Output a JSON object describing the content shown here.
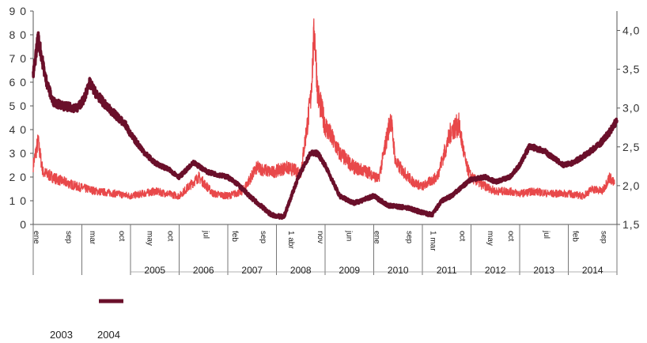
{
  "chart_data": {
    "type": "line",
    "title": "",
    "left_axis": {
      "ylim": [
        0,
        90
      ],
      "ticks": [
        "0",
        "1 0",
        "2 0",
        "3 0",
        "4 0",
        "5 0",
        "6 0",
        "7 0",
        "8 0",
        "9 0"
      ]
    },
    "right_axis": {
      "ylim": [
        1.5,
        4.25
      ],
      "ticks": [
        "1,5",
        "2,0",
        "2,5",
        "3,0",
        "3,5",
        "4,0"
      ]
    },
    "x_sub_labels": [
      {
        "text": "ene",
        "t": 2003.02
      },
      {
        "text": "sep",
        "t": 2003.68
      },
      {
        "text": "mar",
        "t": 2004.17
      },
      {
        "text": "oct",
        "t": 2004.77
      },
      {
        "text": "may",
        "t": 2005.35
      },
      {
        "text": "oct",
        "t": 2005.77
      },
      {
        "text": "jul",
        "t": 2006.5
      },
      {
        "text": "feb",
        "t": 2007.1
      },
      {
        "text": "sep",
        "t": 2007.68
      },
      {
        "text": "1 abr",
        "t": 2008.25
      },
      {
        "text": "nov",
        "t": 2008.85
      },
      {
        "text": "jun",
        "t": 2009.45
      },
      {
        "text": "ene",
        "t": 2010.02
      },
      {
        "text": "sep",
        "t": 2010.68
      },
      {
        "text": "1 mar",
        "t": 2011.17
      },
      {
        "text": "oct",
        "t": 2011.77
      },
      {
        "text": "may",
        "t": 2012.35
      },
      {
        "text": "oct",
        "t": 2012.77
      },
      {
        "text": "jul",
        "t": 2013.5
      },
      {
        "text": "feb",
        "t": 2014.1
      },
      {
        "text": "sep",
        "t": 2014.68
      }
    ],
    "year_labels": [
      {
        "text": "2005",
        "t": 2005.5
      },
      {
        "text": "2006",
        "t": 2006.5
      },
      {
        "text": "2007",
        "t": 2007.5
      },
      {
        "text": "2008",
        "t": 2008.5
      },
      {
        "text": "2009",
        "t": 2009.5
      },
      {
        "text": "2010",
        "t": 2010.5
      },
      {
        "text": "2011",
        "t": 2011.5
      },
      {
        "text": "2012",
        "t": 2012.5
      },
      {
        "text": "2013",
        "t": 2013.5
      },
      {
        "text": "2014",
        "t": 2014.5
      }
    ],
    "year_bounds": [
      2003.0,
      2004.0,
      2005.0,
      2006.0,
      2007.0,
      2008.0,
      2009.0,
      2010.0,
      2011.0,
      2012.0,
      2013.0,
      2014.0,
      2015.0
    ],
    "x_range": [
      2003.0,
      2015.0
    ],
    "series": [
      {
        "axis": "left",
        "color": "#e8484a",
        "points": [
          [
            2003.0,
            25
          ],
          [
            2003.1,
            35
          ],
          [
            2003.2,
            22
          ],
          [
            2003.5,
            19
          ],
          [
            2003.9,
            16
          ],
          [
            2004.3,
            14
          ],
          [
            2004.7,
            13
          ],
          [
            2005.0,
            12
          ],
          [
            2005.5,
            14
          ],
          [
            2006.0,
            12
          ],
          [
            2006.4,
            20
          ],
          [
            2006.7,
            13
          ],
          [
            2007.0,
            12
          ],
          [
            2007.3,
            14
          ],
          [
            2007.6,
            24
          ],
          [
            2007.9,
            22
          ],
          [
            2008.2,
            24
          ],
          [
            2008.5,
            22
          ],
          [
            2008.7,
            52
          ],
          [
            2008.78,
            82
          ],
          [
            2008.85,
            55
          ],
          [
            2009.0,
            42
          ],
          [
            2009.3,
            30
          ],
          [
            2009.6,
            24
          ],
          [
            2009.9,
            22
          ],
          [
            2010.1,
            19
          ],
          [
            2010.35,
            45
          ],
          [
            2010.45,
            26
          ],
          [
            2010.8,
            18
          ],
          [
            2011.0,
            16
          ],
          [
            2011.3,
            20
          ],
          [
            2011.6,
            40
          ],
          [
            2011.75,
            42
          ],
          [
            2011.9,
            25
          ],
          [
            2012.0,
            20
          ],
          [
            2012.2,
            17
          ],
          [
            2012.5,
            14
          ],
          [
            2012.8,
            14
          ],
          [
            2013.0,
            13
          ],
          [
            2013.3,
            14
          ],
          [
            2013.6,
            13
          ],
          [
            2014.0,
            13
          ],
          [
            2014.3,
            12
          ],
          [
            2014.5,
            15
          ],
          [
            2014.7,
            14
          ],
          [
            2014.85,
            20
          ],
          [
            2014.95,
            17
          ]
        ]
      },
      {
        "axis": "left",
        "color": "#6a0f2a",
        "points": [
          [
            2003.0,
            63
          ],
          [
            2003.1,
            79
          ],
          [
            2003.25,
            62
          ],
          [
            2003.4,
            52
          ],
          [
            2003.6,
            50
          ],
          [
            2003.9,
            49
          ],
          [
            2004.05,
            53
          ],
          [
            2004.15,
            60
          ],
          [
            2004.3,
            55
          ],
          [
            2004.5,
            50
          ],
          [
            2004.9,
            42
          ],
          [
            2005.0,
            38
          ],
          [
            2005.3,
            30
          ],
          [
            2005.5,
            26
          ],
          [
            2005.8,
            23
          ],
          [
            2006.0,
            20
          ],
          [
            2006.3,
            26
          ],
          [
            2006.6,
            22
          ],
          [
            2007.0,
            20
          ],
          [
            2007.2,
            17
          ],
          [
            2007.5,
            11
          ],
          [
            2007.9,
            4
          ],
          [
            2008.15,
            3
          ],
          [
            2008.45,
            20
          ],
          [
            2008.7,
            30
          ],
          [
            2008.85,
            30
          ],
          [
            2009.0,
            25
          ],
          [
            2009.3,
            12
          ],
          [
            2009.6,
            9
          ],
          [
            2010.0,
            12
          ],
          [
            2010.3,
            8
          ],
          [
            2010.7,
            7
          ],
          [
            2011.0,
            5
          ],
          [
            2011.2,
            4
          ],
          [
            2011.4,
            10
          ],
          [
            2011.6,
            12
          ],
          [
            2012.0,
            19
          ],
          [
            2012.3,
            20
          ],
          [
            2012.5,
            18
          ],
          [
            2012.8,
            20
          ],
          [
            2013.0,
            25
          ],
          [
            2013.2,
            33
          ],
          [
            2013.5,
            31
          ],
          [
            2013.7,
            28
          ],
          [
            2013.9,
            25
          ],
          [
            2014.1,
            26
          ],
          [
            2014.4,
            30
          ],
          [
            2014.65,
            34
          ],
          [
            2014.85,
            39
          ],
          [
            2015.0,
            44
          ]
        ]
      }
    ]
  },
  "legend": [
    {
      "label": "2003",
      "color": "#e8484a",
      "swatch": false
    },
    {
      "label": "2004",
      "color": "#6a0f2a",
      "swatch": true
    }
  ]
}
